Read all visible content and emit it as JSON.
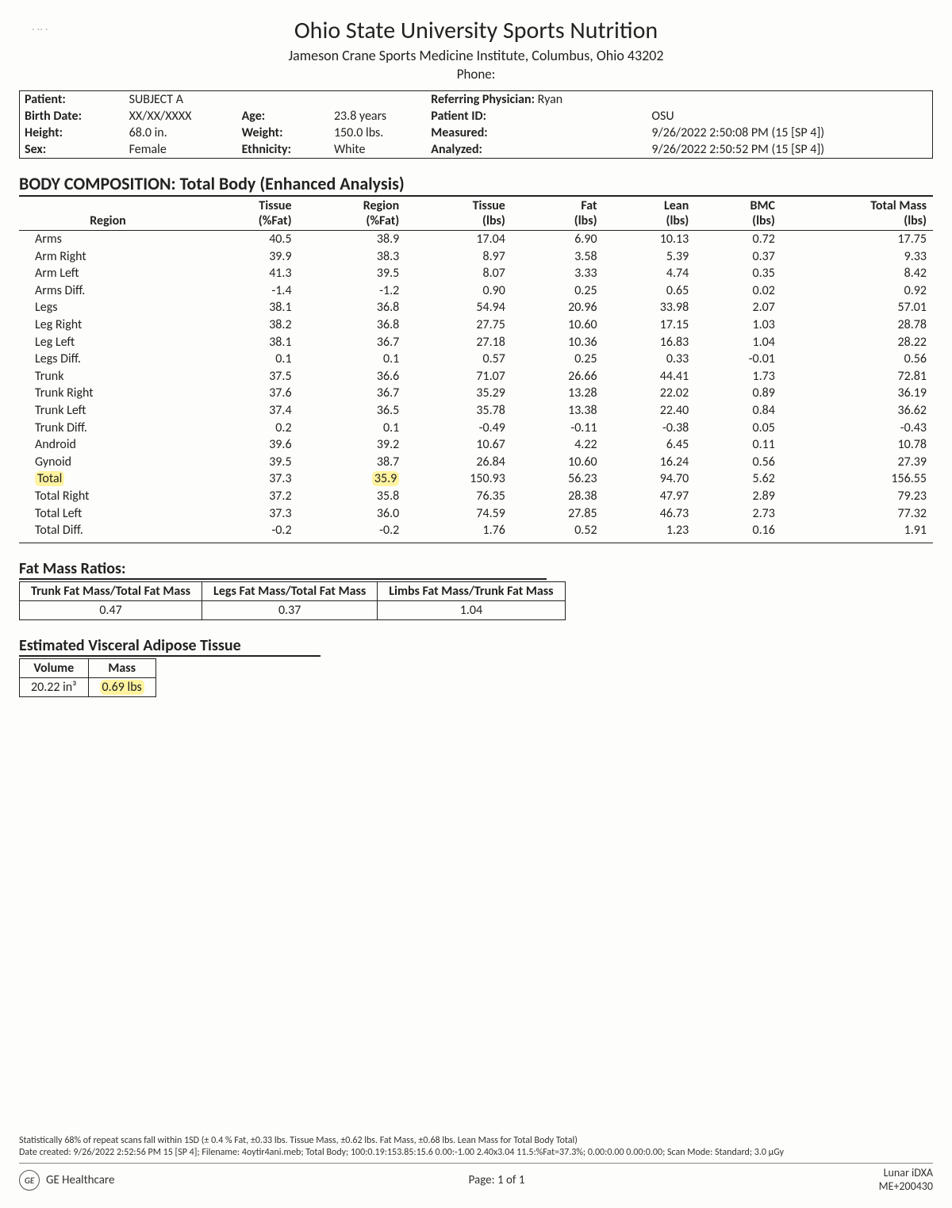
{
  "header": {
    "title": "Ohio State University Sports Nutrition",
    "subtitle": "Jameson Crane Sports Medicine Institute, Columbus, Ohio 43202",
    "phone_label": "Phone:"
  },
  "patient": {
    "labels": {
      "patient": "Patient:",
      "birth": "Birth Date:",
      "height": "Height:",
      "sex": "Sex:",
      "age": "Age:",
      "weight": "Weight:",
      "ethnicity": "Ethnicity:",
      "ref_phys": "Referring Physician:",
      "patient_id": "Patient ID:",
      "measured": "Measured:",
      "analyzed": "Analyzed:"
    },
    "values": {
      "patient": "SUBJECT A",
      "birth": "XX/XX/XXXX",
      "height": "68.0 in.",
      "sex": "Female",
      "age": "23.8 years",
      "weight": "150.0 lbs.",
      "ethnicity": "White",
      "ref_phys": "Ryan",
      "patient_id": "OSU",
      "measured": "9/26/2022  2:50:08 PM (15  [SP 4])",
      "analyzed": "9/26/2022  2:50:52 PM (15  [SP 4])"
    }
  },
  "body_comp": {
    "title": "BODY COMPOSITION: Total Body (Enhanced Analysis)",
    "columns": [
      "Region",
      "Tissue (%Fat)",
      "Region (%Fat)",
      "Tissue (lbs)",
      "Fat (lbs)",
      "Lean (lbs)",
      "BMC (lbs)",
      "Total Mass (lbs)"
    ],
    "col_top": [
      "Region",
      "Tissue",
      "Region",
      "Tissue",
      "Fat",
      "Lean",
      "BMC",
      "Total Mass"
    ],
    "col_sub": [
      "",
      "(%Fat)",
      "(%Fat)",
      "(lbs)",
      "(lbs)",
      "(lbs)",
      "(lbs)",
      "(lbs)"
    ],
    "rows": [
      [
        "Arms",
        "40.5",
        "38.9",
        "17.04",
        "6.90",
        "10.13",
        "0.72",
        "17.75"
      ],
      [
        "Arm Right",
        "39.9",
        "38.3",
        "8.97",
        "3.58",
        "5.39",
        "0.37",
        "9.33"
      ],
      [
        "Arm Left",
        "41.3",
        "39.5",
        "8.07",
        "3.33",
        "4.74",
        "0.35",
        "8.42"
      ],
      [
        "Arms Diff.",
        "-1.4",
        "-1.2",
        "0.90",
        "0.25",
        "0.65",
        "0.02",
        "0.92"
      ],
      [
        "Legs",
        "38.1",
        "36.8",
        "54.94",
        "20.96",
        "33.98",
        "2.07",
        "57.01"
      ],
      [
        "Leg Right",
        "38.2",
        "36.8",
        "27.75",
        "10.60",
        "17.15",
        "1.03",
        "28.78"
      ],
      [
        "Leg Left",
        "38.1",
        "36.7",
        "27.18",
        "10.36",
        "16.83",
        "1.04",
        "28.22"
      ],
      [
        "Legs Diff.",
        "0.1",
        "0.1",
        "0.57",
        "0.25",
        "0.33",
        "-0.01",
        "0.56"
      ],
      [
        "Trunk",
        "37.5",
        "36.6",
        "71.07",
        "26.66",
        "44.41",
        "1.73",
        "72.81"
      ],
      [
        "Trunk Right",
        "37.6",
        "36.7",
        "35.29",
        "13.28",
        "22.02",
        "0.89",
        "36.19"
      ],
      [
        "Trunk Left",
        "37.4",
        "36.5",
        "35.78",
        "13.38",
        "22.40",
        "0.84",
        "36.62"
      ],
      [
        "Trunk Diff.",
        "0.2",
        "0.1",
        "-0.49",
        "-0.11",
        "-0.38",
        "0.05",
        "-0.43"
      ],
      [
        "Android",
        "39.6",
        "39.2",
        "10.67",
        "4.22",
        "6.45",
        "0.11",
        "10.78"
      ],
      [
        "Gynoid",
        "39.5",
        "38.7",
        "26.84",
        "10.60",
        "16.24",
        "0.56",
        "27.39"
      ],
      [
        "Total",
        "37.3",
        "35.9",
        "150.93",
        "56.23",
        "94.70",
        "5.62",
        "156.55"
      ],
      [
        "Total Right",
        "37.2",
        "35.8",
        "76.35",
        "28.38",
        "47.97",
        "2.89",
        "79.23"
      ],
      [
        "Total Left",
        "37.3",
        "36.0",
        "74.59",
        "27.85",
        "46.73",
        "2.73",
        "77.32"
      ],
      [
        "Total Diff.",
        "-0.2",
        "-0.2",
        "1.76",
        "0.52",
        "1.23",
        "0.16",
        "1.91"
      ]
    ],
    "highlight_row_index": 14,
    "highlight_cols": [
      0,
      2
    ]
  },
  "ratios": {
    "title": "Fat Mass Ratios:",
    "headers": [
      "Trunk Fat Mass/Total Fat Mass",
      "Legs Fat Mass/Total Fat Mass",
      "Limbs Fat Mass/Trunk Fat Mass"
    ],
    "values": [
      "0.47",
      "0.37",
      "1.04"
    ]
  },
  "vat": {
    "title": "Estimated Visceral Adipose Tissue",
    "headers": [
      "Volume",
      "Mass"
    ],
    "values": [
      "20.22 in³",
      "0.69 lbs"
    ],
    "highlight_col": 1
  },
  "footer": {
    "line1": "Statistically 68% of repeat scans fall within 1SD (± 0.4 % Fat, ±0.33 lbs. Tissue Mass, ±0.62 lbs. Fat Mass, ±0.68 lbs. Lean Mass for Total Body Total)",
    "line2": "Date created: 9/26/2022 2:52:56 PM 15  [SP 4]; Filename: 4oytir4ani.meb;  Total Body; 100:0.19:153.85:15.6 0.00:-1.00 2.40x3.04 11.5:%Fat=37.3%; 0.00:0.00 0.00:0.00; Scan Mode: Standard;  3.0 µGy",
    "vendor": "GE Healthcare",
    "page": "Page: 1 of 1",
    "device1": "Lunar iDXA",
    "device2": "ME+200430"
  }
}
